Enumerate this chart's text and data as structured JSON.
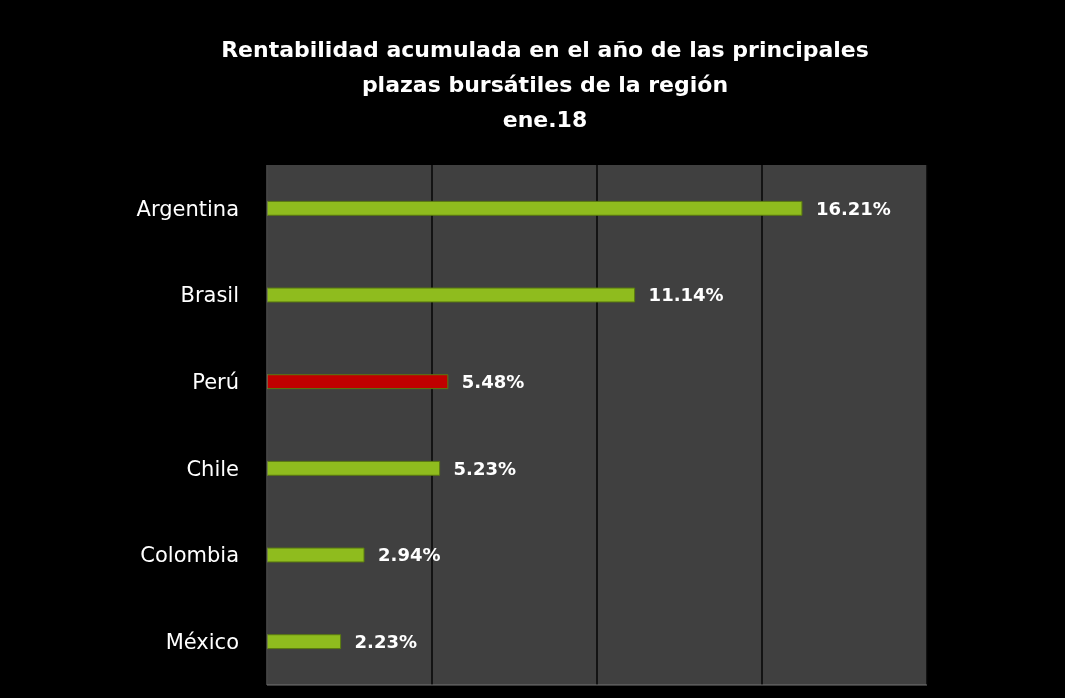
{
  "chart_data": {
    "type": "bar",
    "orientation": "horizontal",
    "title": "Rentabilidad acumulada en el año de las principales plazas bursátiles de la región",
    "subtitle": "ene.18",
    "categories": [
      "Argentina",
      "Brasil",
      "Perú",
      "Chile",
      "Colombia",
      "México"
    ],
    "values": [
      16.21,
      11.14,
      5.48,
      5.23,
      2.94,
      2.23
    ],
    "colors": [
      "#8fbc1e",
      "#8fbc1e",
      "#c00000",
      "#8fbc1e",
      "#8fbc1e",
      "#8fbc1e"
    ],
    "value_labels": [
      "16.21%",
      "11.14%",
      "5.48%",
      "5.23%",
      "2.94%",
      "2.23%"
    ],
    "tick_labels": "y",
    "grid": "x"
  }
}
